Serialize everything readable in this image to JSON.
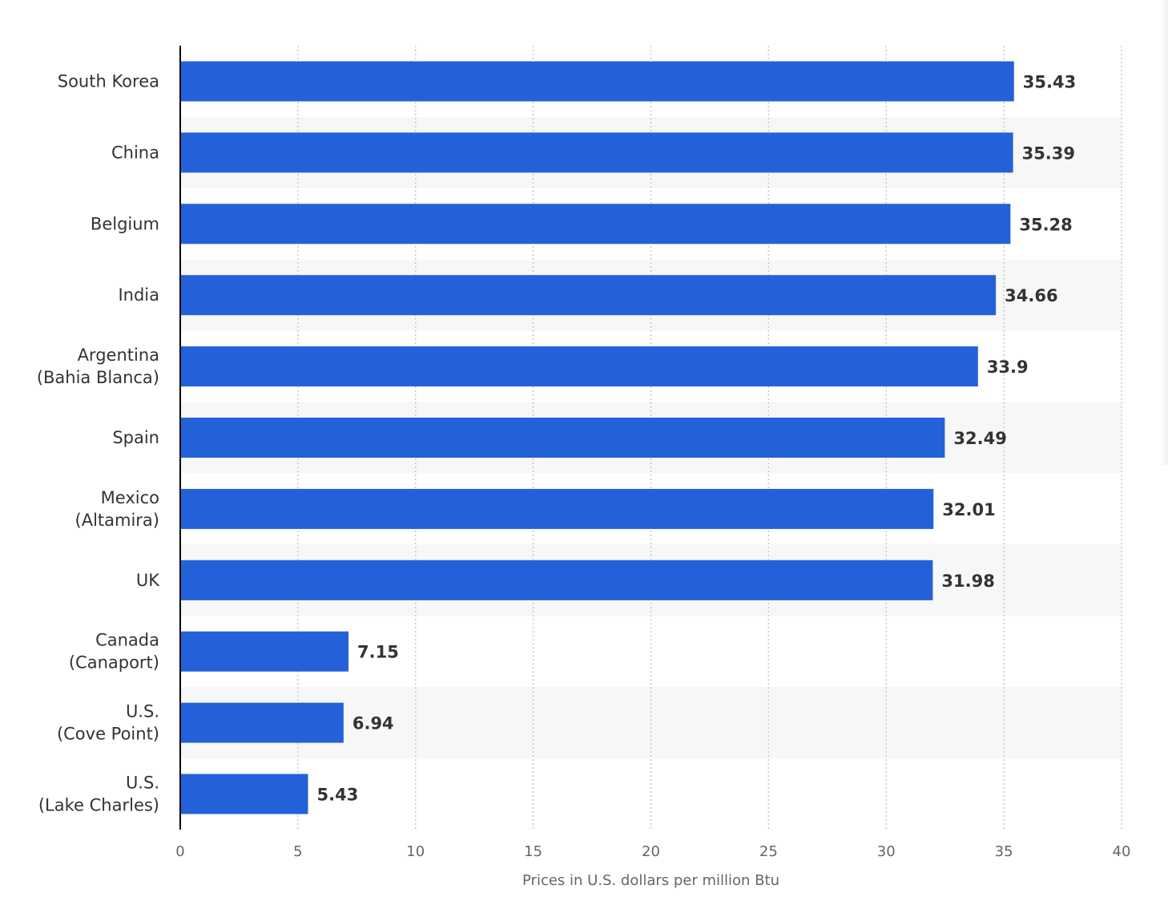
{
  "colors": {
    "bar": "#2461d8",
    "band": "#f7f7f7",
    "grid": "#c8c8c8",
    "axis": "#000000"
  },
  "chart_data": {
    "type": "bar",
    "orientation": "horizontal",
    "categories": [
      [
        "South Korea"
      ],
      [
        "China"
      ],
      [
        "Belgium"
      ],
      [
        "India"
      ],
      [
        "Argentina",
        "(Bahia Blanca)"
      ],
      [
        "Spain"
      ],
      [
        "Mexico",
        "(Altamira)"
      ],
      [
        "UK"
      ],
      [
        "Canada",
        "(Canaport)"
      ],
      [
        "U.S.",
        "(Cove Point)"
      ],
      [
        "U.S.",
        "(Lake Charles)"
      ]
    ],
    "values": [
      35.43,
      35.39,
      35.28,
      34.66,
      33.9,
      32.49,
      32.01,
      31.98,
      7.15,
      6.94,
      5.43
    ],
    "value_labels": [
      "35.43",
      "35.39",
      "35.28",
      "34.66",
      "33.9",
      "32.49",
      "32.01",
      "31.98",
      "7.15",
      "6.94",
      "5.43"
    ],
    "xticks": [
      0,
      5,
      10,
      15,
      20,
      25,
      30,
      35,
      40
    ],
    "xlim": [
      0,
      40
    ],
    "xlabel": "Prices in U.S. dollars per million Btu",
    "ylabel": "",
    "title": "",
    "grid": "vertical dotted",
    "legend": "none"
  }
}
